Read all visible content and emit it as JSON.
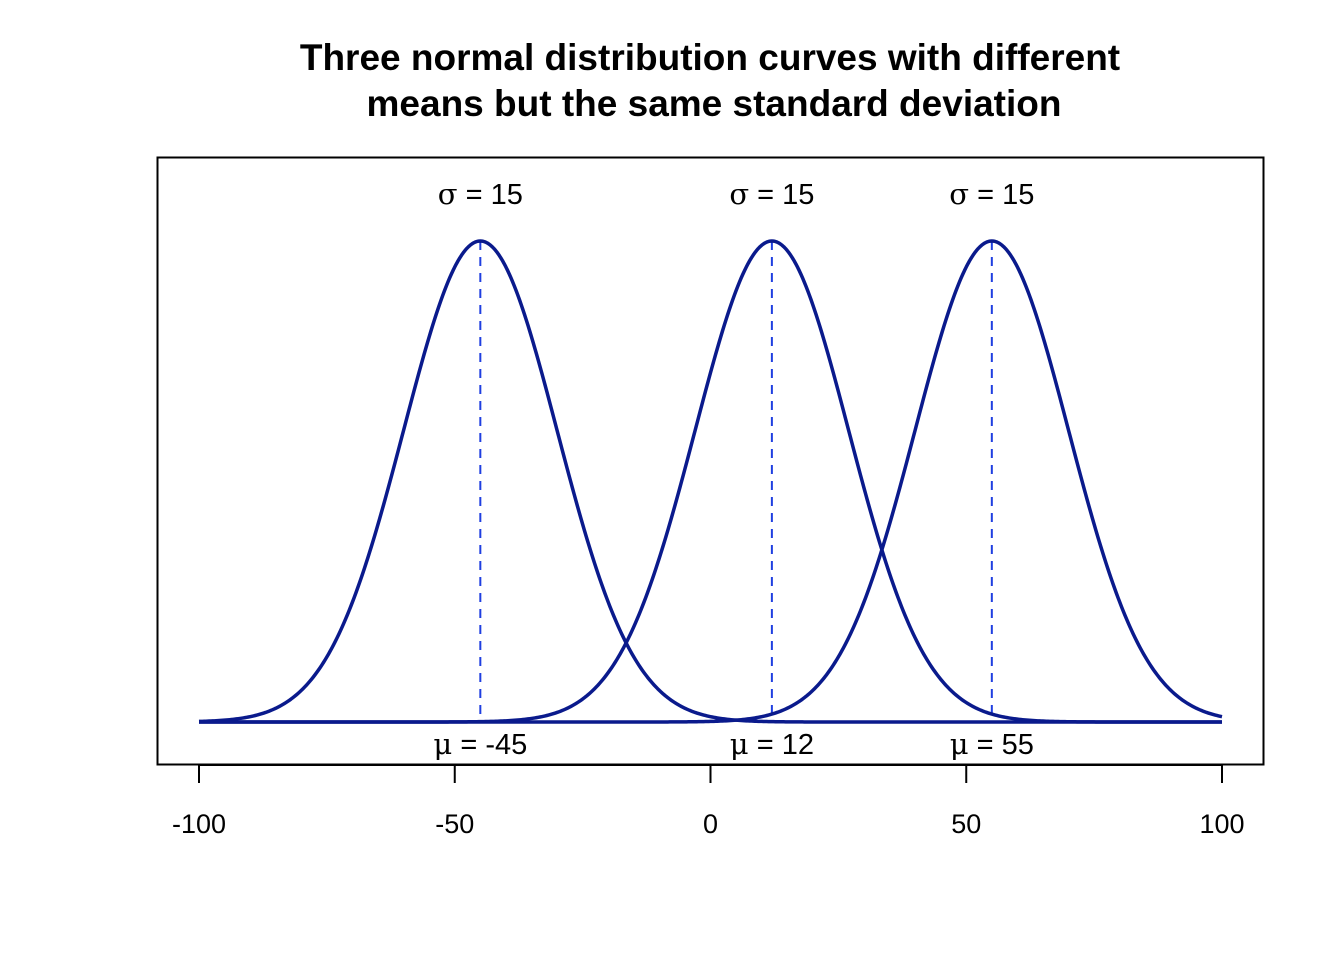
{
  "chart_data": {
    "type": "line",
    "title_line1": "Three normal distribution curves with different",
    "title_line2": "means but the same standard deviation",
    "xlabel": "",
    "ylabel": "",
    "xlim": [
      -100,
      100
    ],
    "x_ticks": [
      -100,
      -50,
      0,
      50,
      100
    ],
    "x_tick_labels": [
      "-100",
      "-50",
      "0",
      "50",
      "100"
    ],
    "y_axis_shown": false,
    "grid": false,
    "colors": {
      "curve": "#0a1a8c",
      "mean_line": "#1f3fe0",
      "axis": "#000000"
    },
    "series": [
      {
        "name": "curve-1",
        "mean": -45,
        "sd": 15,
        "sigma_symbol": "σ",
        "sigma_text": " = 15",
        "mu_symbol": "μ",
        "mu_text": " = -45"
      },
      {
        "name": "curve-2",
        "mean": 12,
        "sd": 15,
        "sigma_symbol": "σ",
        "sigma_text": " = 15",
        "mu_symbol": "μ",
        "mu_text": " = 12"
      },
      {
        "name": "curve-3",
        "mean": 55,
        "sd": 15,
        "sigma_symbol": "σ",
        "sigma_text": " = 15",
        "mu_symbol": "μ",
        "mu_text": " = 55"
      }
    ]
  }
}
